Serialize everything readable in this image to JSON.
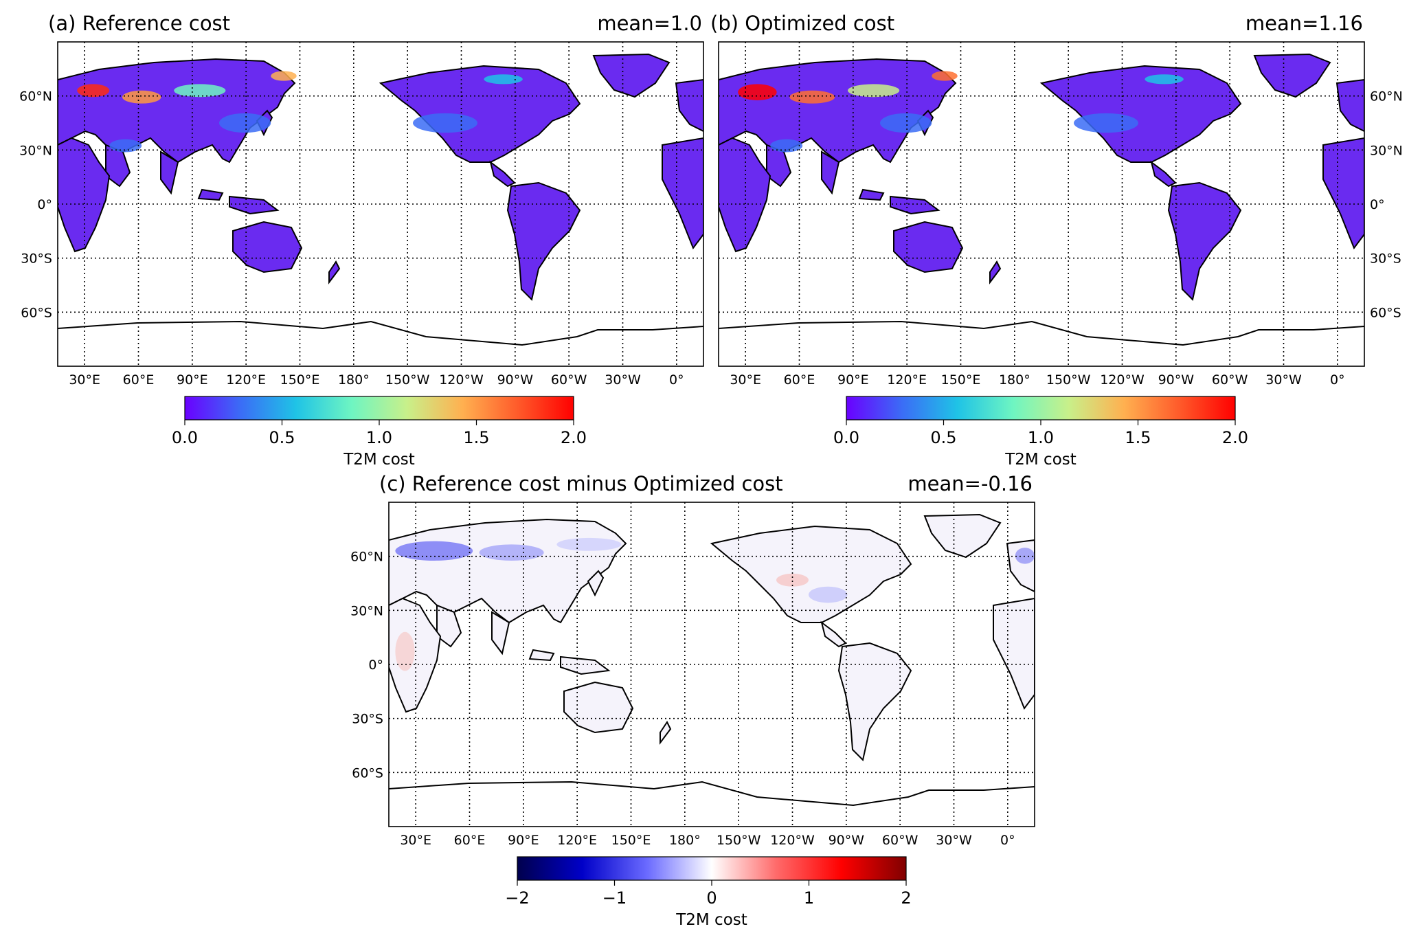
{
  "panels": [
    {
      "id": "a",
      "title": "(a) Reference cost",
      "mean_label": "mean=1.0",
      "colorbar": {
        "label": "T2M cost",
        "ticks": [
          "0.0",
          "0.5",
          "1.0",
          "1.5",
          "2.0"
        ],
        "range": [
          0,
          2
        ],
        "colormap": "rainbow",
        "stops": [
          "#6a00ff",
          "#3b6cf6",
          "#1fc3e6",
          "#6ef5c2",
          "#c8f08a",
          "#ffb050",
          "#ff5a2a",
          "#ff0000"
        ]
      },
      "lat_labels": [
        "60°N",
        "30°N",
        "0°",
        "30°S",
        "60°S"
      ],
      "lat_label_side": "left",
      "lon_labels": [
        "30°E",
        "60°E",
        "90°E",
        "120°E",
        "150°E",
        "180°",
        "150°W",
        "120°W",
        "90°W",
        "60°W",
        "30°W",
        "0°"
      ]
    },
    {
      "id": "b",
      "title": "(b) Optimized cost",
      "mean_label": "mean=1.16",
      "colorbar": {
        "label": "T2M cost",
        "ticks": [
          "0.0",
          "0.5",
          "1.0",
          "1.5",
          "2.0"
        ],
        "range": [
          0,
          2
        ],
        "colormap": "rainbow",
        "stops": [
          "#6a00ff",
          "#3b6cf6",
          "#1fc3e6",
          "#6ef5c2",
          "#c8f08a",
          "#ffb050",
          "#ff5a2a",
          "#ff0000"
        ]
      },
      "lat_labels": [
        "60°N",
        "30°N",
        "0°",
        "30°S",
        "60°S"
      ],
      "lat_label_side": "right",
      "lon_labels": [
        "30°E",
        "60°E",
        "90°E",
        "120°E",
        "150°E",
        "180°",
        "150°W",
        "120°W",
        "90°W",
        "60°W",
        "30°W",
        "0°"
      ]
    },
    {
      "id": "c",
      "title": "(c) Reference cost minus Optimized cost",
      "mean_label": "mean=-0.16",
      "colorbar": {
        "label": "T2M cost",
        "ticks": [
          "−2",
          "−1",
          "0",
          "1",
          "2"
        ],
        "range": [
          -2,
          2
        ],
        "colormap": "seismic",
        "stops": [
          "#00004d",
          "#0000c8",
          "#6a6aff",
          "#ffffff",
          "#ff6a6a",
          "#ff0000",
          "#800000"
        ]
      },
      "lat_labels": [
        "60°N",
        "30°N",
        "0°",
        "30°S",
        "60°S"
      ],
      "lat_label_side": "left",
      "lon_labels": [
        "30°E",
        "60°E",
        "90°E",
        "120°E",
        "150°E",
        "180°",
        "150°W",
        "120°W",
        "90°W",
        "60°W",
        "30°W",
        "0°"
      ]
    }
  ]
}
